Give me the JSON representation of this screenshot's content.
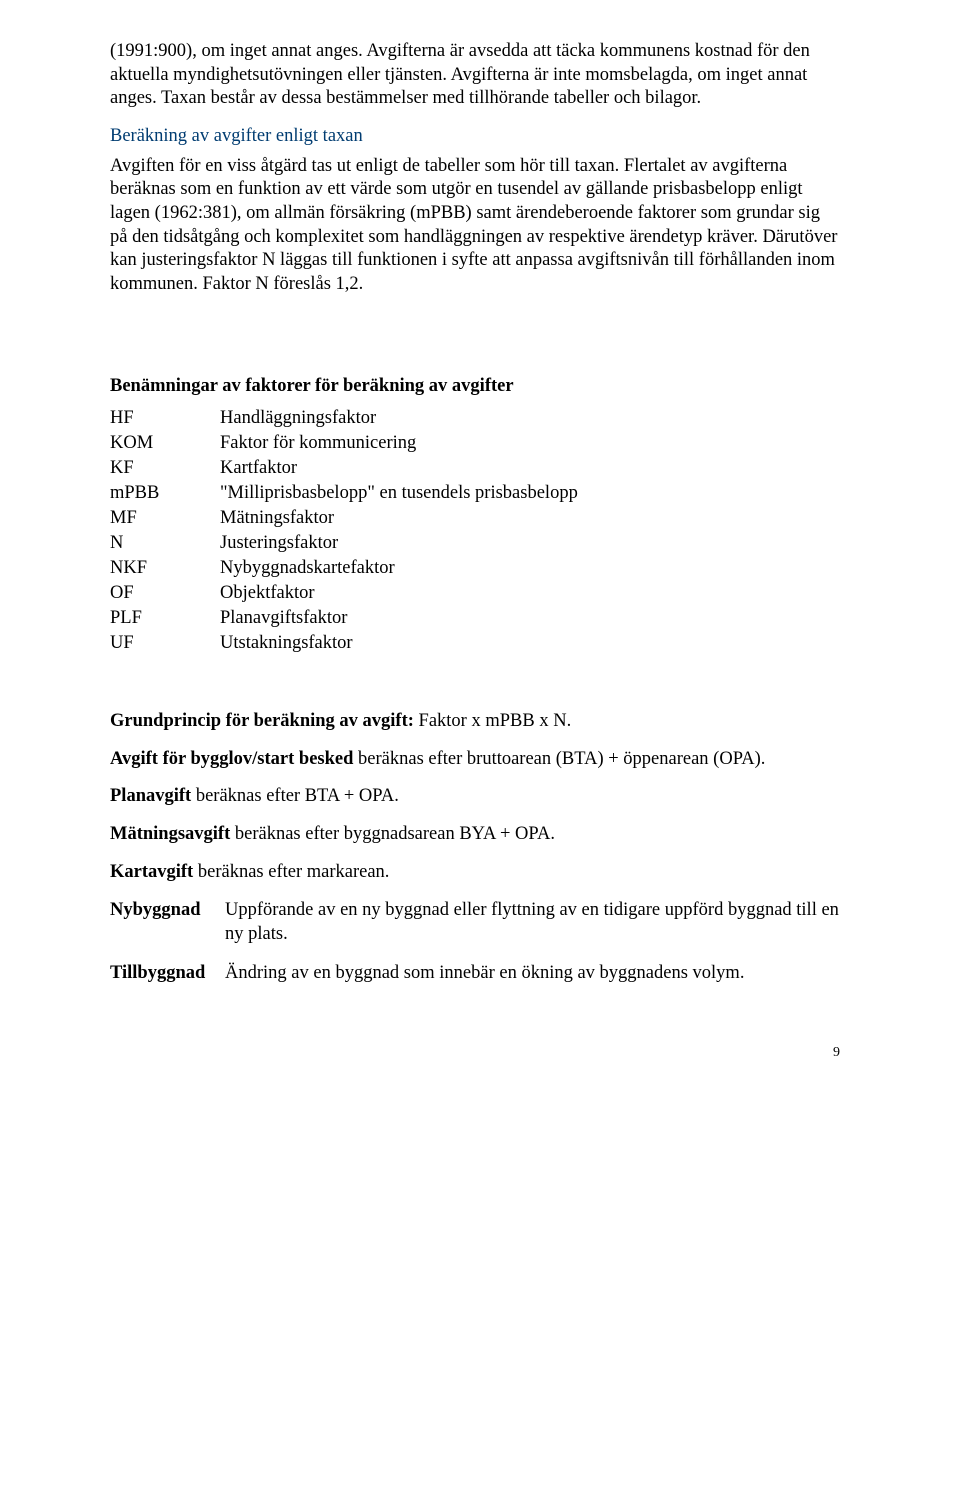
{
  "para1": "(1991:900), om inget annat anges. Avgifterna är avsedda att täcka kommunens kostnad för den aktuella myndighetsutövningen eller tjänsten. Avgifterna är inte momsbelagda, om inget annat anges. Taxan består av dessa bestämmelser med tillhörande tabeller och bilagor.",
  "heading1": "Beräkning av avgifter enligt taxan",
  "para2": "Avgiften för en viss åtgärd tas ut enligt de tabeller som hör till taxan. Flertalet av avgifterna beräknas som en funktion av ett värde som utgör en tusendel av gällande prisbasbelopp enligt lagen (1962:381), om allmän försäkring (mPBB) samt ärendeberoende faktorer som grundar sig på den tidsåtgång och komplexitet som handläggningen av respektive ärendetyp kräver. Därutöver kan justeringsfaktor N läggas till funktionen i syfte att anpassa avgiftsnivån till förhållanden inom kommunen. Faktor N föreslås 1,2.",
  "heading2": "Benämningar av faktorer för beräkning av avgifter",
  "factors": [
    {
      "abbr": "HF",
      "desc": "Handläggningsfaktor"
    },
    {
      "abbr": "KOM",
      "desc": "Faktor för kommunicering"
    },
    {
      "abbr": "KF",
      "desc": "Kartfaktor"
    },
    {
      "abbr": "mPBB",
      "desc": "\"Milliprisbasbelopp\" en tusendels prisbasbelopp"
    },
    {
      "abbr": "MF",
      "desc": "Mätningsfaktor"
    },
    {
      "abbr": "N",
      "desc": "Justeringsfaktor"
    },
    {
      "abbr": "NKF",
      "desc": "Nybyggnadskartefaktor"
    },
    {
      "abbr": "OF",
      "desc": "Objektfaktor"
    },
    {
      "abbr": "PLF",
      "desc": "Planavgiftsfaktor"
    },
    {
      "abbr": "UF",
      "desc": "Utstakningsfaktor"
    }
  ],
  "grund_lead": "Grundprincip för beräkning av avgift: ",
  "grund_rest": "Faktor x mPBB x N.",
  "avg_lead": "Avgift för bygglov/start besked ",
  "avg_rest": "beräknas efter bruttoarean (BTA) + öppenarean (OPA).",
  "plan_lead": "Planavgift ",
  "plan_rest": "beräknas efter BTA + OPA.",
  "matn_lead": "Mätningsavgift ",
  "matn_rest": "beräknas efter byggnadsarean BYA + OPA.",
  "kart_lead": "Kartavgift ",
  "kart_rest": "beräknas efter markarean.",
  "def1_term": "Nybyggnad",
  "def1_desc": "Uppförande av en ny byggnad eller flyttning av en tidigare uppförd byggnad till en ny plats.",
  "def2_term": "Tillbyggnad",
  "def2_desc": "Ändring av en byggnad som innebär en ökning av byggnadens volym.",
  "page_number": "9"
}
